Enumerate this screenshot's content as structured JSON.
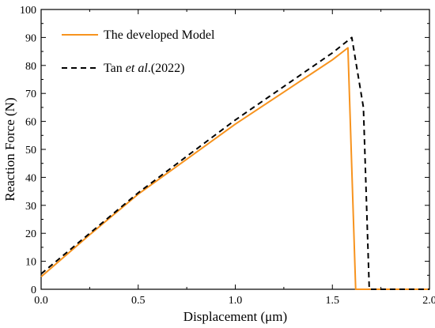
{
  "chart_data": {
    "type": "line",
    "xlabel": "Displacement (μm)",
    "ylabel": "Reaction Force (N)",
    "xlim": [
      0.0,
      2.0
    ],
    "ylim": [
      0,
      100
    ],
    "x_ticks": [
      "0.0",
      "0.5",
      "1.0",
      "1.5",
      "2.0"
    ],
    "y_ticks": [
      "0",
      "10",
      "20",
      "30",
      "40",
      "50",
      "60",
      "70",
      "80",
      "90",
      "100"
    ],
    "grid": false,
    "legend_position": "top-left",
    "series": [
      {
        "name": "The developed Model",
        "style": "solid",
        "color": "#f7931e",
        "x": [
          0.0,
          0.25,
          0.5,
          0.75,
          1.0,
          1.25,
          1.5,
          1.58,
          1.62,
          1.63,
          2.0
        ],
        "y": [
          4.5,
          19.5,
          34,
          46.5,
          59,
          70.5,
          82,
          86.3,
          0,
          0,
          0
        ]
      },
      {
        "name_prefix": "Tan ",
        "name_italic": "et al",
        "name_suffix": ".(2022)",
        "style": "dashed",
        "color": "#000000",
        "x": [
          0.0,
          0.25,
          0.5,
          0.75,
          1.0,
          1.25,
          1.5,
          1.6,
          1.66,
          1.69,
          2.0
        ],
        "y": [
          5.5,
          20,
          34.5,
          47.5,
          60.5,
          72.5,
          84.5,
          90,
          65,
          0,
          0
        ]
      }
    ]
  }
}
